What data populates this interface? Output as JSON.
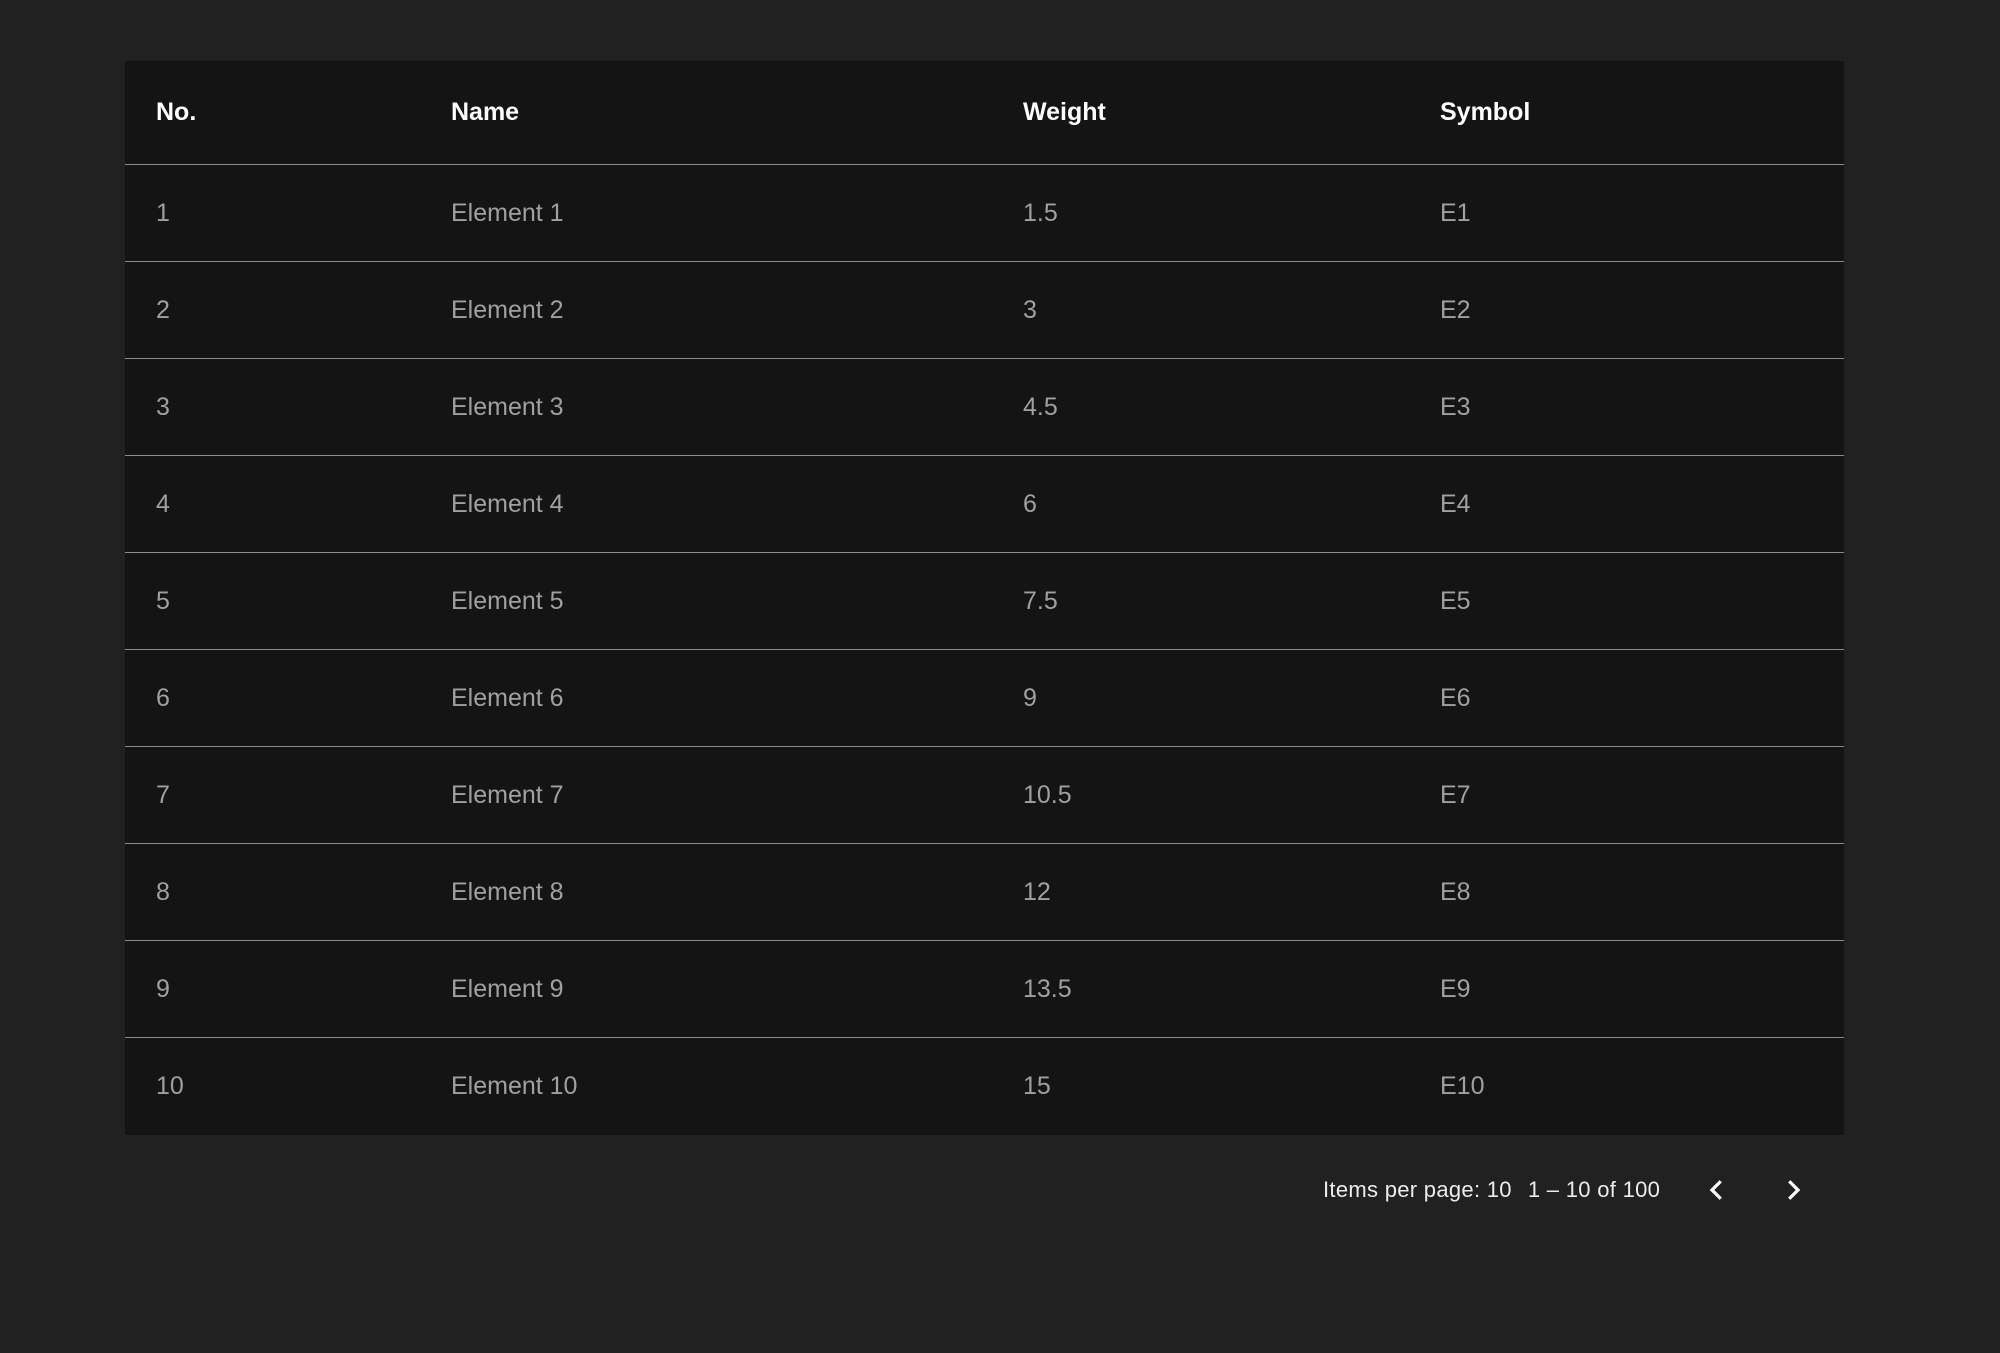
{
  "table": {
    "columns": [
      "No.",
      "Name",
      "Weight",
      "Symbol"
    ],
    "rows": [
      [
        "1",
        "Element 1",
        "1.5",
        "E1"
      ],
      [
        "2",
        "Element 2",
        "3",
        "E2"
      ],
      [
        "3",
        "Element 3",
        "4.5",
        "E3"
      ],
      [
        "4",
        "Element 4",
        "6",
        "E4"
      ],
      [
        "5",
        "Element 5",
        "7.5",
        "E5"
      ],
      [
        "6",
        "Element 6",
        "9",
        "E6"
      ],
      [
        "7",
        "Element 7",
        "10.5",
        "E7"
      ],
      [
        "8",
        "Element 8",
        "12",
        "E8"
      ],
      [
        "9",
        "Element 9",
        "13.5",
        "E9"
      ],
      [
        "10",
        "Element 10",
        "15",
        "E10"
      ]
    ]
  },
  "paginator": {
    "items_per_page_label": "Items per page: 10",
    "range_label": "1 – 10 of 100",
    "prev_icon": "chevron-left-icon",
    "next_icon": "chevron-right-icon"
  },
  "colors": {
    "background": "#212121",
    "table": "#141414",
    "divider": "#8c8c8c"
  }
}
